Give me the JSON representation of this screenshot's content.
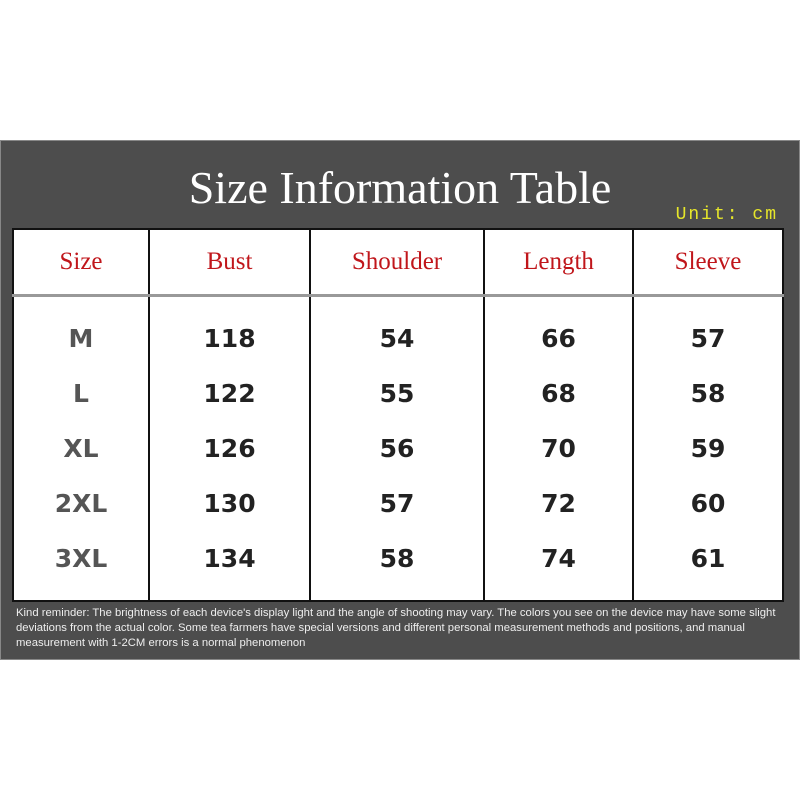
{
  "title": "Size Information Table",
  "unit": "Unit: cm",
  "columns": [
    "Size",
    "Bust",
    "Shoulder",
    "Length",
    "Sleeve"
  ],
  "rows": [
    [
      "M",
      "118",
      "54",
      "66",
      "57"
    ],
    [
      "L",
      "122",
      "55",
      "68",
      "58"
    ],
    [
      "XL",
      "126",
      "56",
      "70",
      "59"
    ],
    [
      "2XL",
      "130",
      "57",
      "72",
      "60"
    ],
    [
      "3XL",
      "134",
      "58",
      "74",
      "61"
    ]
  ],
  "note": "Kind reminder: The brightness of each device's display light and the angle of shooting may vary. The colors you see on the device may have some slight deviations from the actual color. Some tea farmers have special versions and different personal measurement methods and positions, and manual measurement with 1-2CM errors is a normal phenomenon",
  "colors": {
    "panel": "#4d4d4d",
    "header_text": "#c0161b",
    "unit_text": "#e6e62a"
  }
}
